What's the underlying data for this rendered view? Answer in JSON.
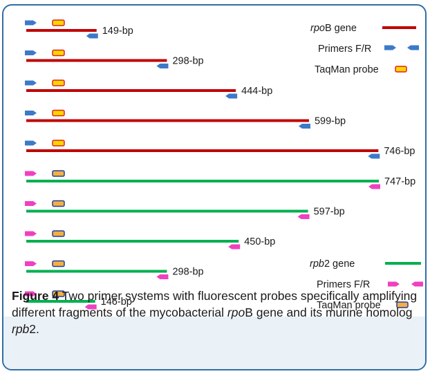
{
  "colors": {
    "rpoB": "#c00000",
    "rpb2": "#00b050",
    "primer_blue": "#3c7ac8",
    "primer_pink": "#f040c0",
    "probe_yellow": "#ffd700",
    "probe_orange": "#f5b041",
    "probe_red_border": "#e02020",
    "probe_blue_border": "#1f3ea0"
  },
  "rpoB_fragments": [
    {
      "label": "149-bp",
      "bp": 149
    },
    {
      "label": "298-bp",
      "bp": 298
    },
    {
      "label": "444-bp",
      "bp": 444
    },
    {
      "label": "599-bp",
      "bp": 599
    },
    {
      "label": "746-bp",
      "bp": 746
    }
  ],
  "rpb2_fragments": [
    {
      "label": "747-bp",
      "bp": 747
    },
    {
      "label": "597-bp",
      "bp": 597
    },
    {
      "label": "450-bp",
      "bp": 450
    },
    {
      "label": "298-bp",
      "bp": 298
    },
    {
      "label": "146-bp",
      "bp": 146
    }
  ],
  "legend_rpoB": {
    "gene_italic": "rpo",
    "gene_rest": "B gene",
    "primers": "Primers F/R",
    "probe": "TaqMan probe"
  },
  "legend_rpb2": {
    "gene_italic": "rpb",
    "gene_rest": "2 gene",
    "primers": "Primers F/R",
    "probe": "TaqMan probe"
  },
  "caption": {
    "figure_label": "Figure 4",
    "text_1": " Two primer systems with fluorescent probes specifically amplifying different fragments of the mycobacterial ",
    "gene1_italic": "rpo",
    "gene1_rest": "B",
    "text_2": " gene and its murine homolog ",
    "gene2_italic": "rpb",
    "gene2_rest": "2",
    "text_3": "."
  }
}
